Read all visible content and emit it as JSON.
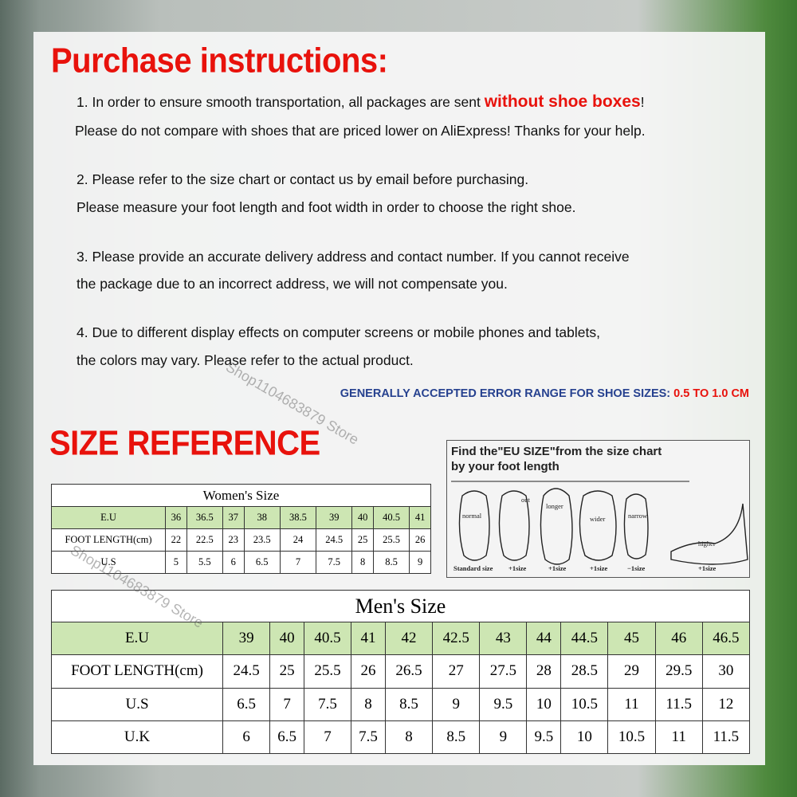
{
  "header": {
    "title": "Purchase instructions:"
  },
  "instructions": [
    {
      "lines": [
        {
          "parts": [
            "1. In order to ensure smooth transportation, all packages are sent ",
            "without shoe boxes",
            "!"
          ]
        },
        {
          "parts": [
            "Please do not compare with shoes that are priced lower on AliExpress! Thanks for your help."
          ]
        }
      ]
    },
    {
      "lines": [
        {
          "parts": [
            "2. Please refer to the size chart or contact us by email before purchasing."
          ]
        },
        {
          "parts": [
            "Please measure your foot length and foot width in order to choose the right shoe."
          ]
        }
      ]
    },
    {
      "lines": [
        {
          "parts": [
            "3. Please provide an accurate delivery address and contact number. If you cannot receive"
          ]
        },
        {
          "parts": [
            "the package due to an incorrect address, we will not compensate you."
          ]
        }
      ]
    },
    {
      "lines": [
        {
          "parts": [
            "4. Due to different display effects on computer screens or mobile phones and tablets,"
          ]
        },
        {
          "parts": [
            "the colors may vary. Please refer to the actual product."
          ]
        }
      ]
    }
  ],
  "error_range": {
    "label": "GENERALLY ACCEPTED ERROR RANGE FOR SHOE SIZES:",
    "value": "0.5 TO 1.0 CM"
  },
  "size_reference": {
    "title": "SIZE REFERENCE"
  },
  "womens_table": {
    "title": "Women's Size",
    "rows": [
      {
        "label": "E.U",
        "cells": [
          36,
          36.5,
          37,
          38,
          38.5,
          39,
          40,
          40.5,
          41
        ]
      },
      {
        "label": "FOOT LENGTH(cm)",
        "cells": [
          22,
          22.5,
          23,
          23.5,
          24,
          24.5,
          25,
          25.5,
          26
        ]
      },
      {
        "label": "U.S",
        "cells": [
          5,
          5.5,
          6,
          6.5,
          7,
          7.5,
          8,
          8.5,
          9
        ]
      }
    ]
  },
  "foot_guide": {
    "title_lines": [
      "Find the\"EU SIZE\"from the size chart",
      "by your foot length"
    ],
    "labels": [
      "normal",
      "out",
      "longer",
      "wider",
      "narrow",
      "higher"
    ],
    "captions": [
      "Standard size",
      "+1size",
      "+1size",
      "+1size",
      "−1size",
      "+1size"
    ]
  },
  "mens_table": {
    "title": "Men's Size",
    "rows": [
      {
        "label": "E.U",
        "cells": [
          39,
          40,
          40.5,
          41,
          42,
          42.5,
          43,
          44,
          44.5,
          45,
          46,
          46.5
        ]
      },
      {
        "label": "FOOT LENGTH(cm)",
        "cells": [
          24.5,
          25,
          25.5,
          26,
          26.5,
          27,
          27.5,
          28,
          28.5,
          29,
          29.5,
          30
        ]
      },
      {
        "label": "U.S",
        "cells": [
          6.5,
          7,
          7.5,
          8,
          8.5,
          9,
          9.5,
          10,
          10.5,
          11,
          11.5,
          12
        ]
      },
      {
        "label": "U.K",
        "cells": [
          6,
          6.5,
          7,
          7.5,
          8,
          8.5,
          9,
          9.5,
          10,
          10.5,
          11,
          11.5
        ]
      }
    ]
  },
  "watermarks": [
    "Shop1104683879 Store",
    "Shop1104683879 Store"
  ]
}
